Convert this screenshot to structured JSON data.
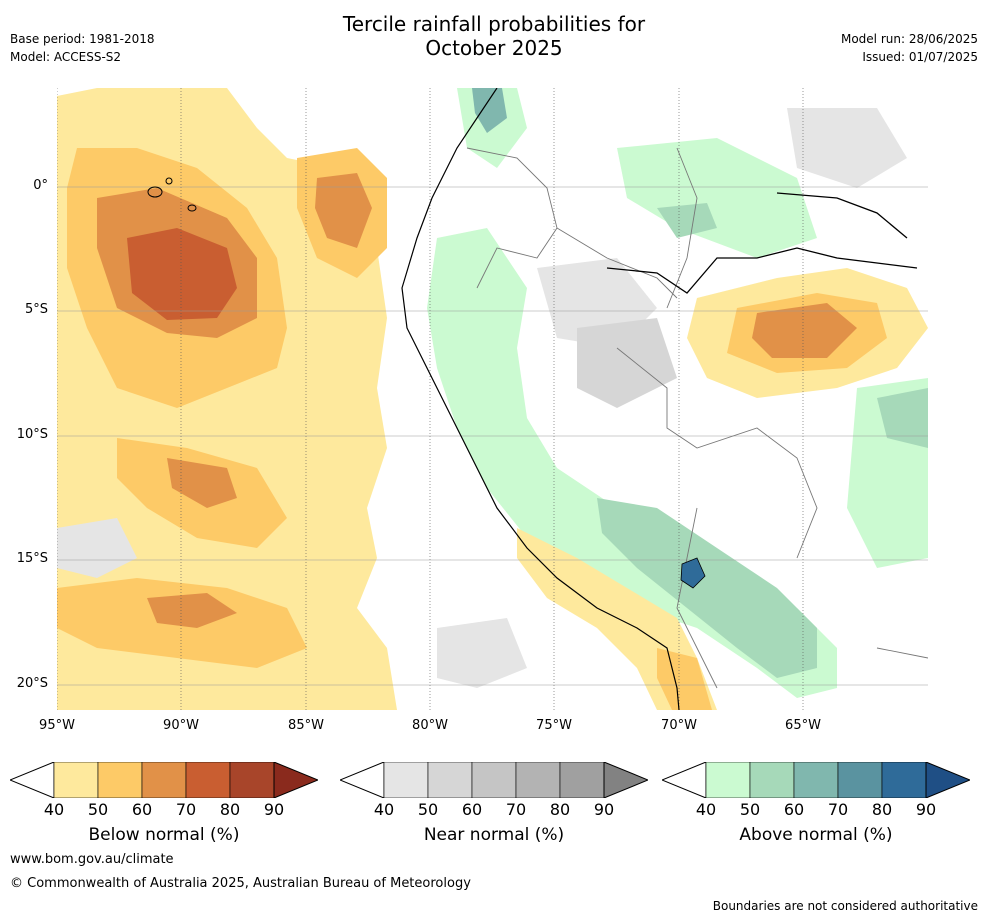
{
  "header": {
    "title_line1": "Tercile rainfall probabilities for",
    "title_line2": "October 2025",
    "base_period": "Base period: 1981-2018",
    "model": "Model: ACCESS-S2",
    "model_run": "Model run: 28/06/2025",
    "issued": "Issued: 01/07/2025"
  },
  "map": {
    "x_ticks": [
      "95°W",
      "90°W",
      "85°W",
      "80°W",
      "75°W",
      "70°W",
      "65°W"
    ],
    "y_ticks": [
      "0°",
      "5°S",
      "10°S",
      "15°S",
      "20°S"
    ]
  },
  "colorbars": [
    {
      "label": "Below normal (%)",
      "ticks": [
        "40",
        "50",
        "60",
        "70",
        "80",
        "90"
      ],
      "colors": [
        "#fee99d",
        "#fdca67",
        "#e19148",
        "#c95e31",
        "#a8452a",
        "#8a2a1d"
      ]
    },
    {
      "label": "Near normal (%)",
      "ticks": [
        "40",
        "50",
        "60",
        "70",
        "80",
        "90"
      ],
      "colors": [
        "#e5e5e5",
        "#d6d6d6",
        "#c5c5c5",
        "#b3b3b3",
        "#a0a0a0",
        "#828282"
      ]
    },
    {
      "label": "Above normal (%)",
      "ticks": [
        "40",
        "50",
        "60",
        "70",
        "80",
        "90"
      ],
      "colors": [
        "#cbfad1",
        "#a6d9b9",
        "#80b7ae",
        "#5a93a0",
        "#2f6b99",
        "#1f4f85"
      ]
    }
  ],
  "footer": {
    "url": "www.bom.gov.au/climate",
    "copyright": "© Commonwealth of Australia 2025, Australian Bureau of Meteorology",
    "disclaimer": "Boundaries are not considered authoritative"
  }
}
